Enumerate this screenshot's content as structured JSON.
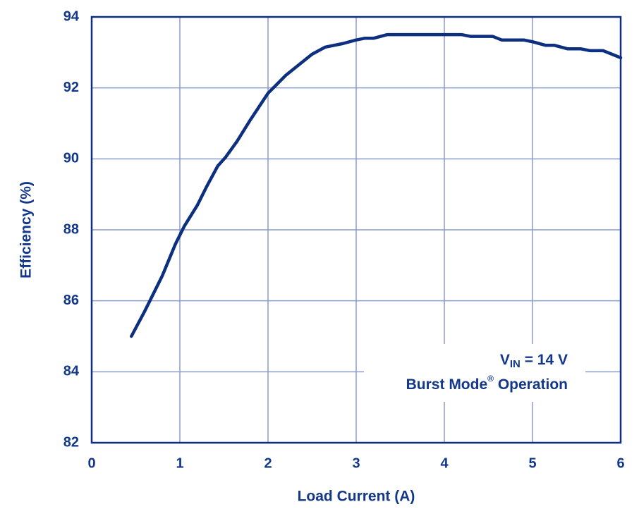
{
  "chart_data": {
    "type": "line",
    "x_label": "Load Current (A)",
    "y_label": "Efficiency (%)",
    "annotation": {
      "symbol": "V",
      "subscript": "IN",
      "value": " = 14 V",
      "mode": "Burst Mode",
      "mark": "®",
      "mode_suffix": " Operation"
    },
    "x": [
      0.45,
      0.6,
      0.7,
      0.8,
      0.95,
      1.05,
      1.2,
      1.3,
      1.43,
      1.52,
      1.65,
      1.8,
      2.0,
      2.2,
      2.4,
      2.5,
      2.65,
      2.85,
      3.0,
      3.1,
      3.2,
      3.35,
      3.6,
      4.0,
      4.2,
      4.3,
      4.55,
      4.65,
      4.9,
      5.0,
      5.15,
      5.25,
      5.4,
      5.55,
      5.65,
      5.8,
      6.0
    ],
    "values": [
      85.0,
      85.7,
      86.2,
      86.7,
      87.6,
      88.1,
      88.7,
      89.2,
      89.8,
      90.05,
      90.5,
      91.1,
      91.85,
      92.35,
      92.75,
      92.95,
      93.15,
      93.25,
      93.35,
      93.4,
      93.4,
      93.5,
      93.5,
      93.5,
      93.5,
      93.45,
      93.45,
      93.35,
      93.35,
      93.3,
      93.2,
      93.2,
      93.1,
      93.1,
      93.05,
      93.05,
      92.85
    ],
    "color": "#0d2f80",
    "xlim": [
      0,
      6
    ],
    "xticks": [
      0,
      1,
      2,
      3,
      4,
      5,
      6
    ],
    "ylim": [
      82,
      94
    ],
    "yticks": [
      82,
      84,
      86,
      88,
      90,
      92,
      94
    ],
    "grid": true
  }
}
